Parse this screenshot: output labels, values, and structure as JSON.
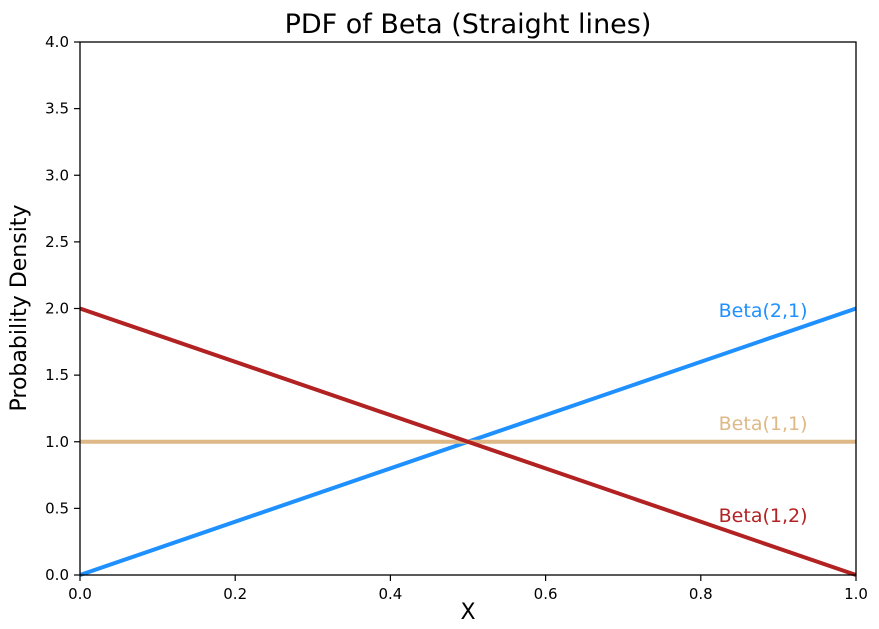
{
  "figure": {
    "background": "#ffffff"
  },
  "chart_data": {
    "type": "line",
    "title": "PDF of Beta (Straight lines)",
    "xlabel": "X",
    "ylabel": "Probability Density",
    "xlim": [
      0.0,
      1.0
    ],
    "ylim": [
      0.0,
      4.0
    ],
    "grid": false,
    "legend_position": "inline-annotations",
    "xticks": {
      "values": [
        0.0,
        0.2,
        0.4,
        0.6,
        0.8,
        1.0
      ],
      "labels": [
        "0.0",
        "0.2",
        "0.4",
        "0.6",
        "0.8",
        "1.0"
      ]
    },
    "yticks": {
      "values": [
        0.0,
        0.5,
        1.0,
        1.5,
        2.0,
        2.5,
        3.0,
        3.5,
        4.0
      ],
      "labels": [
        "0.0",
        "0.5",
        "1.0",
        "1.5",
        "2.0",
        "2.5",
        "3.0",
        "3.5",
        "4.0"
      ]
    },
    "series": [
      {
        "name": "Beta(2,1)",
        "color": "#1E90FF",
        "x": [
          0.0,
          1.0
        ],
        "y": [
          0.0,
          2.0
        ]
      },
      {
        "name": "Beta(1,1)",
        "color": "#DEB887",
        "x": [
          0.0,
          1.0
        ],
        "y": [
          1.0,
          1.0
        ]
      },
      {
        "name": "Beta(1,2)",
        "color": "#B22222",
        "x": [
          0.0,
          1.0
        ],
        "y": [
          2.0,
          0.0
        ]
      }
    ],
    "annotations": [
      {
        "text": "Beta(2,1)",
        "x": 0.823,
        "y": 1.99,
        "color": "#1E90FF"
      },
      {
        "text": "Beta(1,1)",
        "x": 0.823,
        "y": 1.14,
        "color": "#DEB887"
      },
      {
        "text": "Beta(1,2)",
        "x": 0.823,
        "y": 0.45,
        "color": "#B22222"
      }
    ],
    "axis_color": "#000000"
  }
}
